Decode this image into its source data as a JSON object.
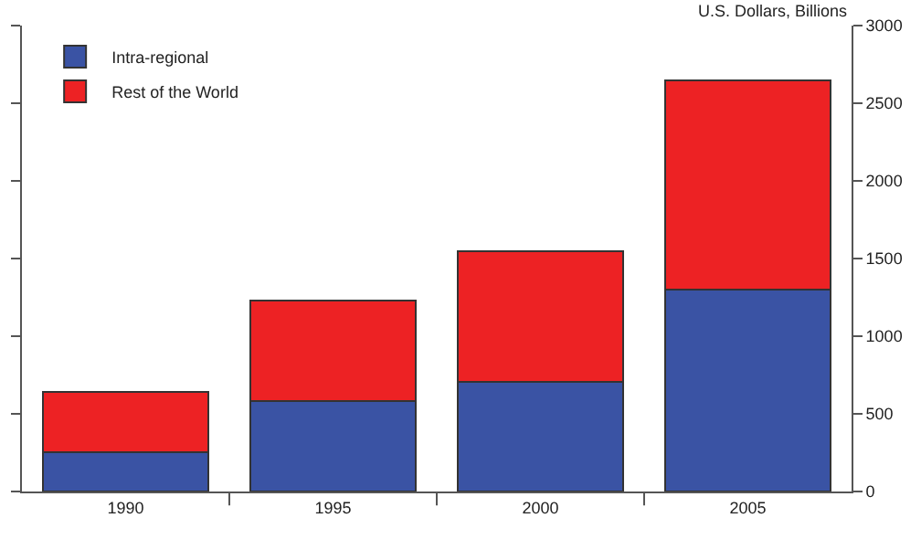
{
  "chart_data": {
    "type": "bar",
    "stacked": true,
    "ylabel": "U.S. Dollars, Billions",
    "categories": [
      "1990",
      "1995",
      "2000",
      "2005"
    ],
    "series": [
      {
        "name": "Intra-regional",
        "color": "#3a53a4",
        "values": [
          255,
          580,
          705,
          1300
        ]
      },
      {
        "name": "Rest of the World",
        "color": "#ed2224",
        "values": [
          385,
          650,
          840,
          1345
        ]
      }
    ],
    "ylim": [
      0,
      3000
    ],
    "yticks": [
      0,
      500,
      1000,
      1500,
      2000,
      2500,
      3000
    ],
    "grid": false,
    "legend": "top left"
  }
}
